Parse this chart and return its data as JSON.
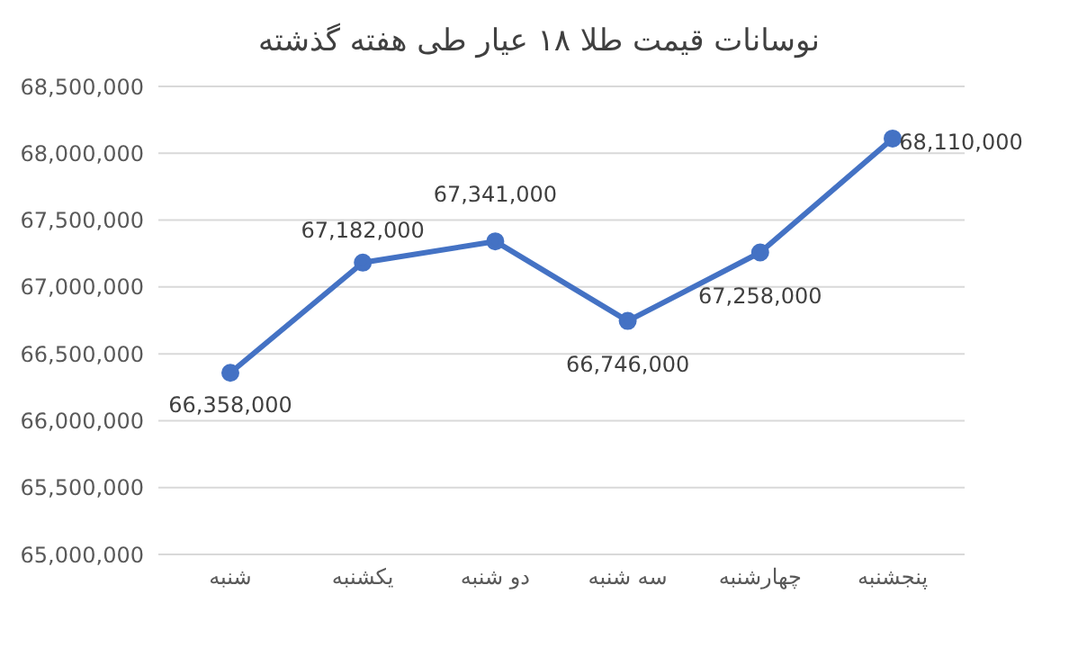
{
  "chart_data": {
    "type": "line",
    "title": "نوسانات قیمت طلا ۱۸ عیار طی هفته گذشته",
    "categories": [
      "شنبه",
      "یکشنبه",
      "دو شنبه",
      "سه شنبه",
      "چهارشنبه",
      "پنجشنبه"
    ],
    "series": [
      {
        "color": "#4472c4",
        "values": [
          66358000,
          67182000,
          67341000,
          66746000,
          67258000,
          68110000
        ],
        "value_labels": [
          "66,358,000",
          "67,182,000",
          "67,341,000",
          "66,746,000",
          "67,258,000",
          "68,110,000"
        ]
      }
    ],
    "ylim": [
      65000000,
      68500000
    ],
    "yticks": [
      {
        "value": 65000000,
        "label": "65,000,000"
      },
      {
        "value": 65500000,
        "label": "65,500,000"
      },
      {
        "value": 66000000,
        "label": "66,000,000"
      },
      {
        "value": 66500000,
        "label": "66,500,000"
      },
      {
        "value": 67000000,
        "label": "67,000,000"
      },
      {
        "value": 67500000,
        "label": "67,500,000"
      },
      {
        "value": 68000000,
        "label": "68,000,000"
      },
      {
        "value": 68500000,
        "label": "68,500,000"
      }
    ],
    "grid": "y",
    "marker": "circle",
    "line_style": "solid"
  }
}
